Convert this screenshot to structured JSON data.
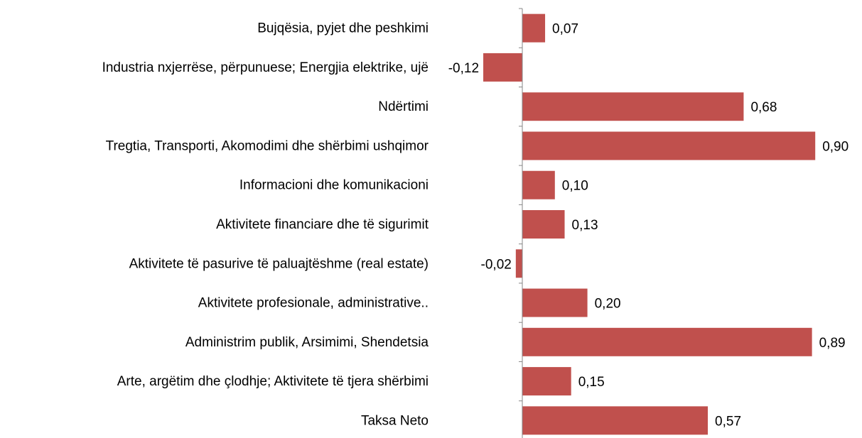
{
  "chart_data": {
    "type": "bar",
    "orientation": "horizontal",
    "categories": [
      "Bujqësia, pyjet dhe peshkimi",
      "Industria nxjerrëse, përpunuese; Energjia elektrike, ujë",
      "Ndërtimi",
      "Tregtia, Transporti, Akomodimi dhe shërbimi ushqimor",
      "Informacioni dhe komunikacioni",
      "Aktivitete financiare dhe të sigurimit",
      "Aktivitete të pasurive të paluajtëshme (real estate)",
      "Aktivitete profesionale, administrative..",
      "Administrim publik, Arsimimi, Shendetsia",
      "Arte, argëtim dhe çlodhje; Aktivitete të tjera shërbimi",
      "Taksa Neto"
    ],
    "values": [
      0.07,
      -0.12,
      0.68,
      0.9,
      0.1,
      0.13,
      -0.02,
      0.2,
      0.89,
      0.15,
      0.57
    ],
    "value_labels": [
      "0,07",
      "-0,12",
      "0,68",
      "0,90",
      "0,10",
      "0,13",
      "-0,02",
      "0,20",
      "0,89",
      "0,15",
      "0,57"
    ],
    "color": "#c0504d"
  }
}
